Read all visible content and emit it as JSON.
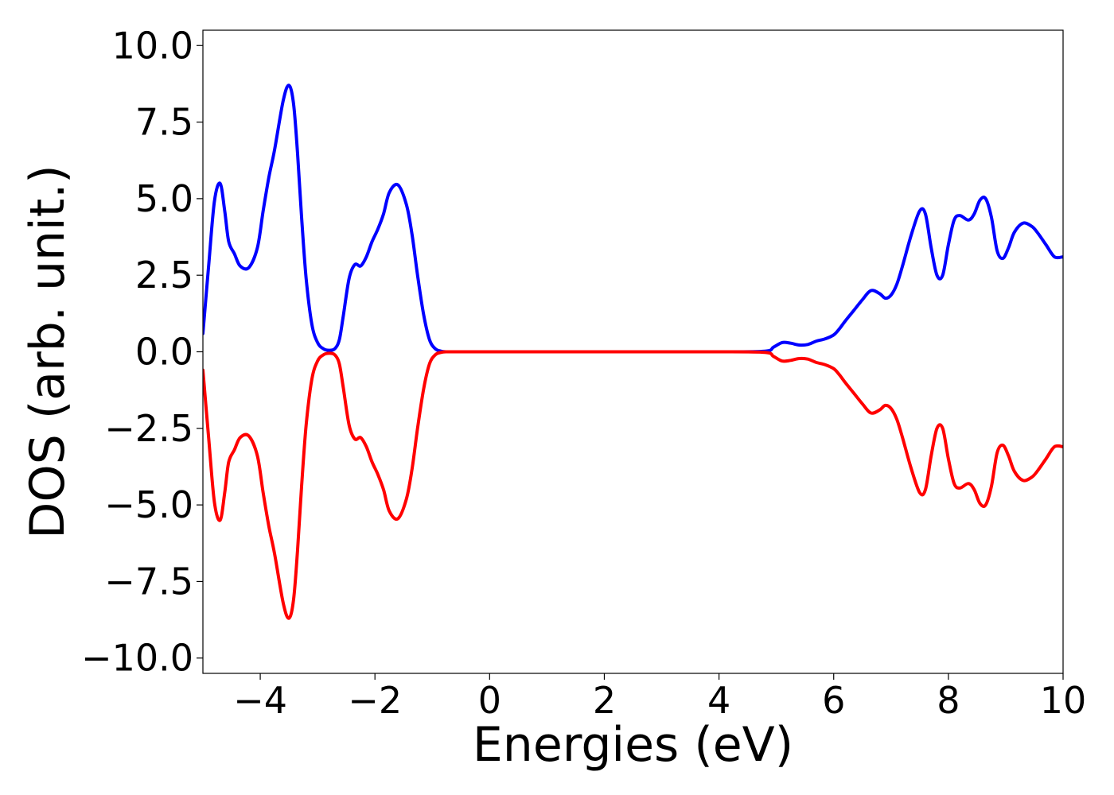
{
  "chart_data": {
    "type": "line",
    "title": "",
    "xlabel": "Energies (eV)",
    "ylabel": "DOS (arb. unit.)",
    "xlim": [
      -5,
      10
    ],
    "ylim": [
      -10.5,
      10.5
    ],
    "xticks": [
      -4,
      -2,
      0,
      2,
      4,
      6,
      8,
      10
    ],
    "xtick_labels": [
      "−4",
      "−2",
      "0",
      "2",
      "4",
      "6",
      "8",
      "10"
    ],
    "yticks": [
      10.0,
      7.5,
      5.0,
      2.5,
      0.0,
      -2.5,
      -5.0,
      -7.5,
      -10.0
    ],
    "ytick_labels": [
      "10.0",
      "7.5",
      "5.0",
      "2.5",
      "0.0",
      "−2.5",
      "−5.0",
      "−7.5",
      "−10.0"
    ],
    "grid": false,
    "legend": "none",
    "series": [
      {
        "color": "#0000ff",
        "x": [
          -5.0,
          -4.9,
          -4.8,
          -4.7,
          -4.62,
          -4.55,
          -4.45,
          -4.35,
          -4.2,
          -4.05,
          -3.95,
          -3.85,
          -3.75,
          -3.6,
          -3.5,
          -3.42,
          -3.35,
          -3.28,
          -3.2,
          -3.1,
          -3.0,
          -2.9,
          -2.8,
          -2.7,
          -2.62,
          -2.55,
          -2.45,
          -2.35,
          -2.25,
          -2.15,
          -2.05,
          -1.95,
          -1.85,
          -1.75,
          -1.6,
          -1.45,
          -1.35,
          -1.25,
          -1.15,
          -1.05,
          -0.95,
          -0.85,
          -0.75,
          -0.65,
          -0.55,
          -0.4,
          0.0,
          1.0,
          2.0,
          3.0,
          4.0,
          4.8,
          4.95,
          5.1,
          5.25,
          5.4,
          5.55,
          5.7,
          5.85,
          6.0,
          6.1,
          6.2,
          6.35,
          6.5,
          6.65,
          6.8,
          6.9,
          7.0,
          7.1,
          7.2,
          7.35,
          7.5,
          7.6,
          7.7,
          7.8,
          7.9,
          8.0,
          8.1,
          8.2,
          8.35,
          8.45,
          8.55,
          8.65,
          8.75,
          8.85,
          8.95,
          9.05,
          9.15,
          9.3,
          9.45,
          9.55,
          9.7,
          9.85,
          10.0
        ],
        "values": [
          0.6,
          2.8,
          4.9,
          5.5,
          4.6,
          3.6,
          3.2,
          2.8,
          2.75,
          3.4,
          4.6,
          5.7,
          6.6,
          8.2,
          8.7,
          8.1,
          6.5,
          4.4,
          2.4,
          0.9,
          0.3,
          0.1,
          0.05,
          0.1,
          0.4,
          1.2,
          2.4,
          2.85,
          2.8,
          3.1,
          3.6,
          4.0,
          4.5,
          5.2,
          5.45,
          4.8,
          3.8,
          2.4,
          1.2,
          0.4,
          0.1,
          0.02,
          0.0,
          0.0,
          0.0,
          0.0,
          0.0,
          0.0,
          0.0,
          0.0,
          0.0,
          0.02,
          0.15,
          0.3,
          0.28,
          0.22,
          0.24,
          0.35,
          0.42,
          0.55,
          0.75,
          1.0,
          1.35,
          1.7,
          2.0,
          1.9,
          1.75,
          1.85,
          2.2,
          2.8,
          3.8,
          4.6,
          4.5,
          3.4,
          2.5,
          2.5,
          3.5,
          4.3,
          4.45,
          4.3,
          4.5,
          4.95,
          5.0,
          4.4,
          3.3,
          3.05,
          3.4,
          3.9,
          4.2,
          4.1,
          3.9,
          3.5,
          3.1,
          3.1
        ]
      },
      {
        "color": "#ff0000",
        "x": [
          -5.0,
          -4.9,
          -4.8,
          -4.7,
          -4.62,
          -4.55,
          -4.45,
          -4.35,
          -4.2,
          -4.05,
          -3.95,
          -3.85,
          -3.75,
          -3.6,
          -3.5,
          -3.42,
          -3.35,
          -3.28,
          -3.2,
          -3.1,
          -3.0,
          -2.9,
          -2.8,
          -2.7,
          -2.62,
          -2.55,
          -2.45,
          -2.35,
          -2.25,
          -2.15,
          -2.05,
          -1.95,
          -1.85,
          -1.75,
          -1.6,
          -1.45,
          -1.35,
          -1.25,
          -1.15,
          -1.05,
          -0.95,
          -0.85,
          -0.75,
          -0.65,
          -0.55,
          -0.4,
          0.0,
          1.0,
          2.0,
          3.0,
          4.0,
          4.8,
          4.95,
          5.1,
          5.25,
          5.4,
          5.55,
          5.7,
          5.85,
          6.0,
          6.1,
          6.2,
          6.35,
          6.5,
          6.65,
          6.8,
          6.9,
          7.0,
          7.1,
          7.2,
          7.35,
          7.5,
          7.6,
          7.7,
          7.8,
          7.9,
          8.0,
          8.1,
          8.2,
          8.35,
          8.45,
          8.55,
          8.65,
          8.75,
          8.85,
          8.95,
          9.05,
          9.15,
          9.3,
          9.45,
          9.55,
          9.7,
          9.85,
          10.0
        ],
        "values": [
          -0.6,
          -2.8,
          -4.9,
          -5.5,
          -4.6,
          -3.6,
          -3.2,
          -2.8,
          -2.75,
          -3.4,
          -4.6,
          -5.7,
          -6.6,
          -8.2,
          -8.7,
          -8.1,
          -6.5,
          -4.4,
          -2.4,
          -0.9,
          -0.3,
          -0.1,
          -0.05,
          -0.1,
          -0.4,
          -1.2,
          -2.4,
          -2.85,
          -2.8,
          -3.1,
          -3.6,
          -4.0,
          -4.5,
          -5.2,
          -5.45,
          -4.8,
          -3.8,
          -2.4,
          -1.2,
          -0.4,
          -0.1,
          -0.02,
          0.0,
          0.0,
          0.0,
          0.0,
          0.0,
          0.0,
          0.0,
          0.0,
          0.0,
          -0.02,
          -0.15,
          -0.3,
          -0.28,
          -0.22,
          -0.24,
          -0.35,
          -0.42,
          -0.55,
          -0.75,
          -1.0,
          -1.35,
          -1.7,
          -2.0,
          -1.9,
          -1.75,
          -1.85,
          -2.2,
          -2.8,
          -3.8,
          -4.6,
          -4.5,
          -3.4,
          -2.5,
          -2.5,
          -3.5,
          -4.3,
          -4.45,
          -4.3,
          -4.5,
          -4.95,
          -5.0,
          -4.4,
          -3.3,
          -3.05,
          -3.4,
          -3.9,
          -4.2,
          -4.1,
          -3.9,
          -3.5,
          -3.1,
          -3.1
        ]
      }
    ]
  }
}
